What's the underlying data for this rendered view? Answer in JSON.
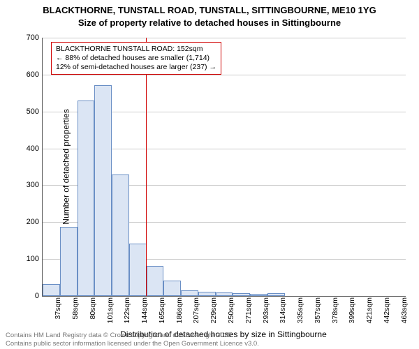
{
  "title_line1": "BLACKTHORNE, TUNSTALL ROAD, TUNSTALL, SITTINGBOURNE, ME10 1YG",
  "title_line2": "Size of property relative to detached houses in Sittingbourne",
  "chart": {
    "type": "histogram",
    "ylabel": "Number of detached properties",
    "xlabel": "Distribution of detached houses by size in Sittingbourne",
    "ymax": 700,
    "ytick_step": 100,
    "categories": [
      "37sqm",
      "58sqm",
      "80sqm",
      "101sqm",
      "122sqm",
      "144sqm",
      "165sqm",
      "186sqm",
      "207sqm",
      "229sqm",
      "250sqm",
      "271sqm",
      "293sqm",
      "314sqm",
      "335sqm",
      "357sqm",
      "378sqm",
      "399sqm",
      "421sqm",
      "442sqm",
      "463sqm"
    ],
    "values": [
      32,
      188,
      530,
      572,
      330,
      142,
      82,
      42,
      15,
      12,
      10,
      8,
      5,
      8,
      0,
      0,
      0,
      0,
      0,
      0,
      0
    ],
    "bar_fill": "#dbe5f4",
    "bar_stroke": "#6a8fc5",
    "grid_color": "#cccccc",
    "background_color": "#ffffff",
    "marker_position_sqm": 152,
    "marker_line_color": "#d00000",
    "annotation": {
      "line1": "BLACKTHORNE TUNSTALL ROAD: 152sqm",
      "line2": "← 88% of detached houses are smaller (1,714)",
      "line3": "12% of semi-detached houses are larger (237) →",
      "border_color": "#d00000",
      "background": "#ffffff",
      "fontsize": 10.5
    }
  },
  "footer": {
    "line1": "Contains HM Land Registry data © Crown copyright and database right 2025.",
    "line2": "Contains public sector information licensed under the Open Government Licence v3.0."
  }
}
